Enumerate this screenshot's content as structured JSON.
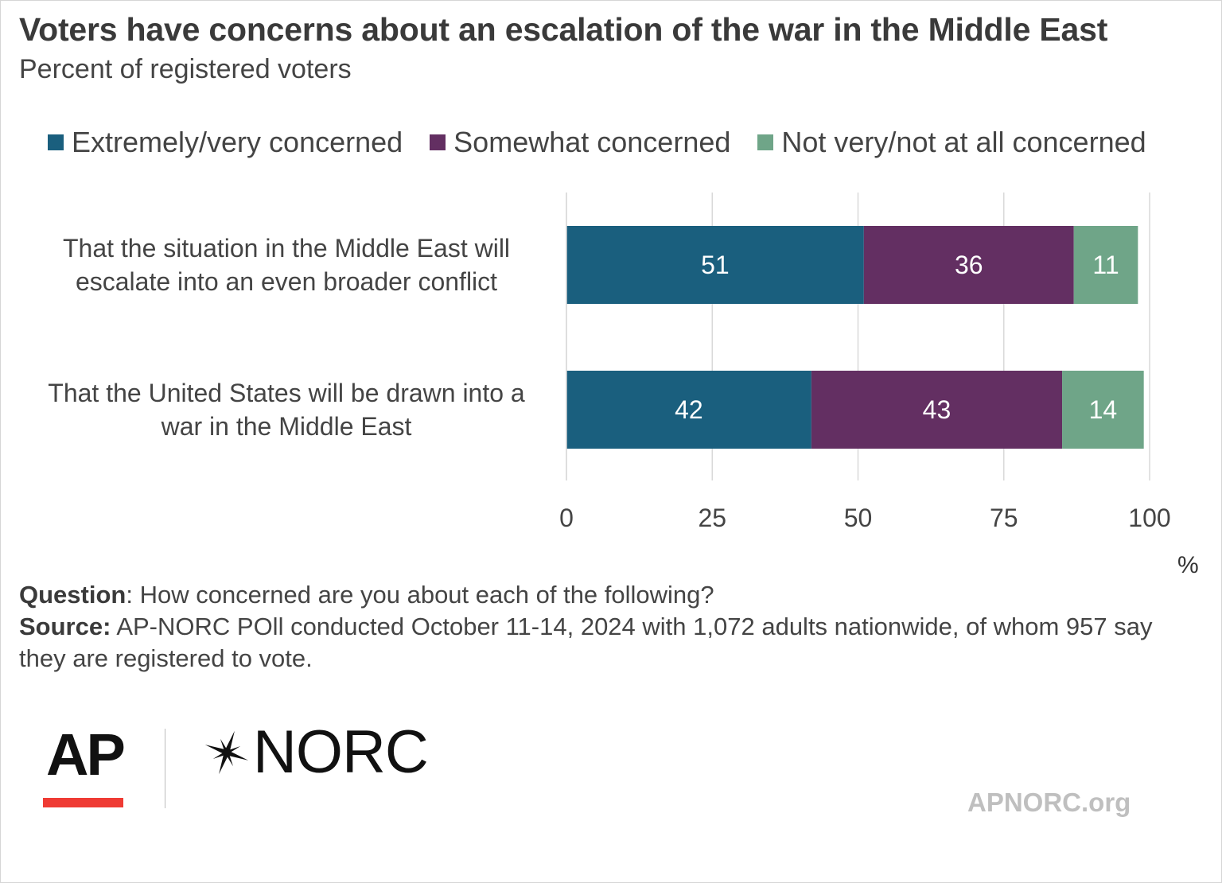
{
  "title": "Voters have concerns about an escalation of the war in the Middle East",
  "subtitle": "Percent of registered voters",
  "colors": {
    "extremely": "#1a5f7e",
    "somewhat": "#632f62",
    "not_very": "#6fa588",
    "grid": "#d9d9d9",
    "bar_label": "#ffffff"
  },
  "unit_label": "%",
  "notes": {
    "question_label": "Question",
    "question_text": ": How concerned are you about each of the following?",
    "source_label": "Source:",
    "source_text": " AP-NORC POll conducted October 11-14, 2024 with 1,072 adults nationwide, of whom 957 say they are registered to vote."
  },
  "logos": {
    "ap": "AP",
    "norc": "NORC",
    "norc_mark": "norc-star-icon",
    "website": "APNORC.org"
  },
  "chart_data": {
    "type": "bar",
    "orientation": "horizontal",
    "stacked": true,
    "categories": [
      "That the situation in the Middle East will escalate into an even broader conflict",
      "That the United States will be drawn into a war in the Middle East"
    ],
    "category_lines": [
      [
        "That the situation in the Middle East will",
        "escalate into an even broader conflict"
      ],
      [
        "That the United States will be drawn into a",
        "war in the Middle East"
      ]
    ],
    "series": [
      {
        "name": "Extremely/very concerned",
        "values": [
          51,
          42
        ],
        "color": "#1a5f7e"
      },
      {
        "name": "Somewhat concerned",
        "values": [
          36,
          43
        ],
        "color": "#632f62"
      },
      {
        "name": "Not very/not at all concerned",
        "values": [
          11,
          14
        ],
        "color": "#6fa588"
      }
    ],
    "xlim": [
      0,
      100
    ],
    "xticks": [
      0,
      25,
      50,
      75,
      100
    ],
    "xlabel": "%",
    "grid": true,
    "legend": "top"
  }
}
